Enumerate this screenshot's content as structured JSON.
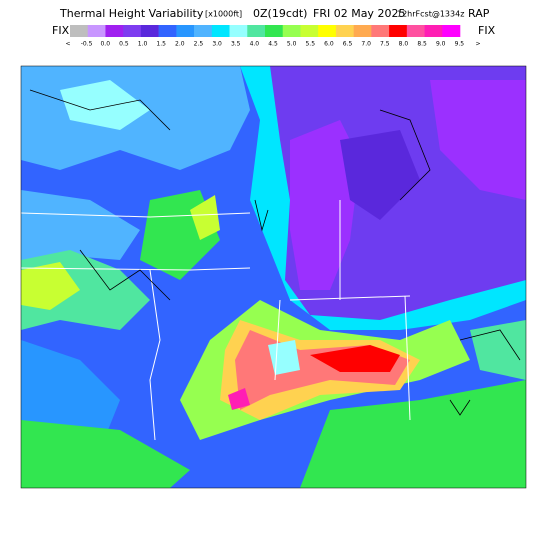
{
  "header": {
    "title": "Thermal Height Variability",
    "units": "[x1000ft]",
    "time": "0Z(19cdt)",
    "date": "FRI 02 May 2025",
    "forecast": "12hrFcst@1334z",
    "model": "RAP"
  },
  "legend": {
    "left_label": "FIX",
    "right_label": "FIX",
    "labels": [
      "<",
      "-0.5",
      "0.0",
      "0.5",
      "1.0",
      "1.5",
      "2.0",
      "2.5",
      "3.0",
      "3.5",
      "4.0",
      "4.5",
      "5.0",
      "5.5",
      "6.0",
      "6.5",
      "7.0",
      "7.5",
      "8.0",
      "8.5",
      "9.0",
      "9.5",
      ">"
    ],
    "colors": [
      "#bebebe",
      "#c896ff",
      "#a020f0",
      "#7e3cf0",
      "#5a28dc",
      "#3264ff",
      "#2896ff",
      "#50b4ff",
      "#00e6ff",
      "#96ffff",
      "#50e6a0",
      "#32e650",
      "#96ff50",
      "#c8ff32",
      "#ffff00",
      "#ffd250",
      "#ffaa50",
      "#ff7878",
      "#ff0000",
      "#ff50a0",
      "#ff1eb4",
      "#ff00ff"
    ]
  }
}
